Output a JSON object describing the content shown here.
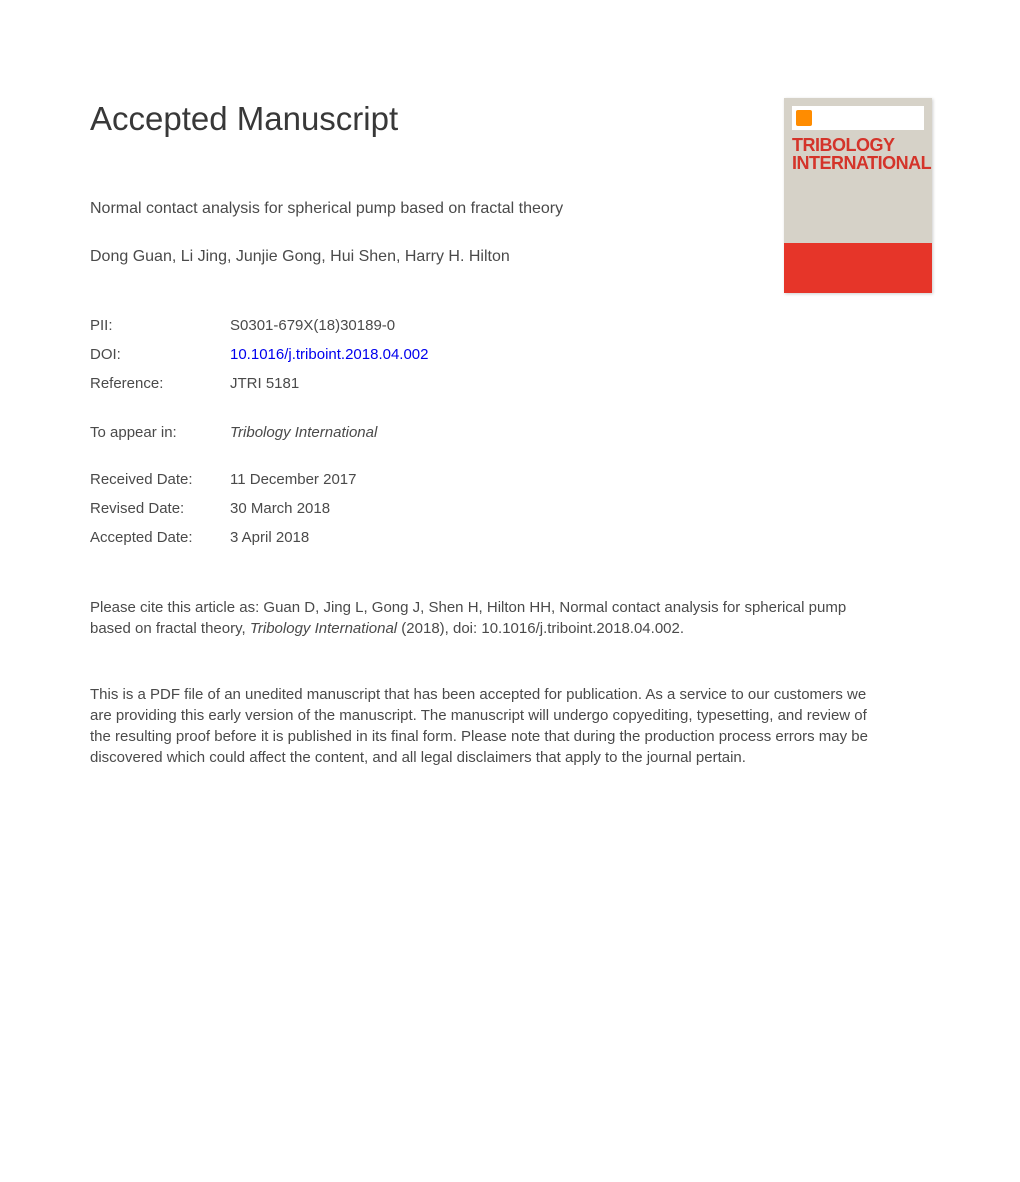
{
  "page": {
    "heading": "Accepted Manuscript"
  },
  "article": {
    "title": "Normal contact analysis for spherical pump based on fractal theory",
    "authors": "Dong Guan, Li Jing, Junjie Gong, Hui Shen, Harry H. Hilton"
  },
  "meta": {
    "pii_label": "PII:",
    "pii_value": "S0301-679X(18)30189-0",
    "doi_label": "DOI:",
    "doi_value": "10.1016/j.triboint.2018.04.002",
    "reference_label": "Reference:",
    "reference_value": "JTRI 5181",
    "appear_label": "To appear in:",
    "appear_value": "Tribology International",
    "received_label": "Received Date:",
    "received_value": "11 December 2017",
    "revised_label": "Revised Date:",
    "revised_value": "30 March 2018",
    "accepted_label": "Accepted Date:",
    "accepted_value": "3 April 2018"
  },
  "citation": {
    "prefix": "Please cite this article as: Guan D, Jing L, Gong J, Shen H, Hilton HH, Normal contact analysis for spherical pump based on fractal theory, ",
    "journal": "Tribology International",
    "suffix": " (2018), doi: 10.1016/j.triboint.2018.04.002."
  },
  "disclaimer": "This is a PDF file of an unedited manuscript that has been accepted for publication. As a service to our customers we are providing this early version of the manuscript. The manuscript will undergo copyediting, typesetting, and review of the resulting proof before it is published in its final form. Please note that during the production process errors may be discovered which could affect the content, and all legal disclaimers that apply to the journal pertain.",
  "cover": {
    "journal_line1": "TRIBOLOGY",
    "journal_line2": "INTERNATIONAL",
    "colors": {
      "background": "#d6d2c8",
      "red_band": "#e63529",
      "title_color": "#d4342a",
      "logo_color": "#ff8c00"
    }
  }
}
